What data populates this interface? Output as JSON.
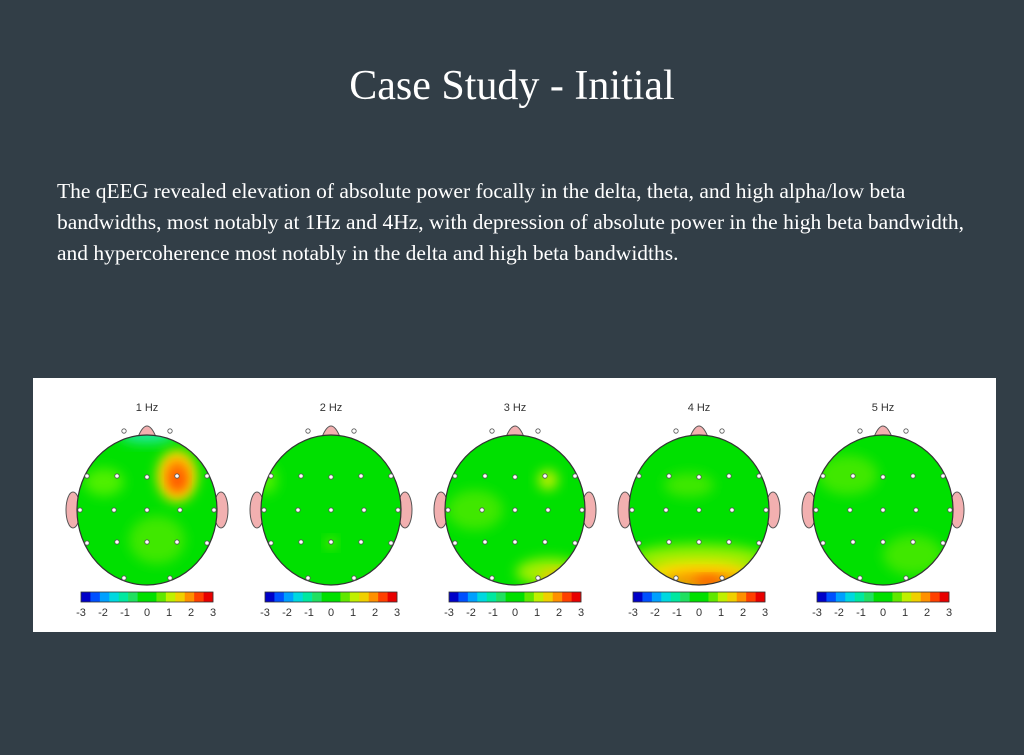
{
  "slide": {
    "title": "Case Study - Initial",
    "body": "The qEEG revealed elevation of absolute power focally in the delta, theta, and high alpha/low beta bandwidths, most notably at 1Hz and 4Hz, with depression of absolute power in the high beta bandwidth, and hypercoherence most notably in the delta and high beta bandwidths."
  },
  "figure": {
    "maps": [
      {
        "label": "1 Hz"
      },
      {
        "label": "2 Hz"
      },
      {
        "label": "3 Hz"
      },
      {
        "label": "4 Hz"
      },
      {
        "label": "5 Hz"
      }
    ],
    "colorbar_ticks": [
      "-3",
      "-2",
      "-1",
      "0",
      "1",
      "2",
      "3"
    ],
    "colorbar_colors": [
      "#0000c8",
      "#0050ff",
      "#00a0ff",
      "#00d8e0",
      "#00e8a0",
      "#20e060",
      "#00e000",
      "#00e000",
      "#60e800",
      "#c0f000",
      "#f0d000",
      "#ff9000",
      "#ff4000",
      "#e80000"
    ],
    "head_color": "#00e000",
    "nose_ear_color": "#f2b0b0"
  }
}
